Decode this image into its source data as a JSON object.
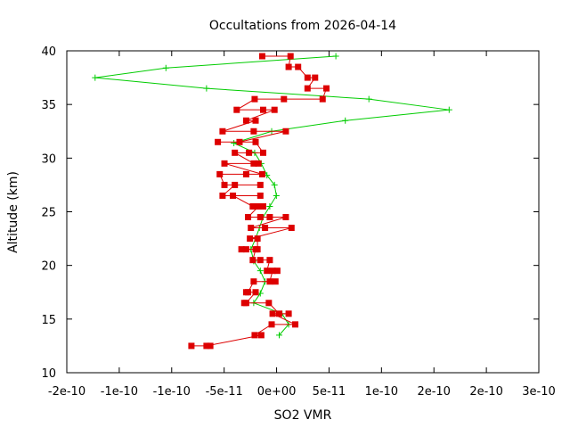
{
  "chart_data": {
    "type": "line",
    "title": "Occultations from 2026-04-14",
    "xlabel": "SO2 VMR",
    "ylabel": "Altitude (km)",
    "xlim": [
      -2e-10,
      3e-10
    ],
    "ylim": [
      10,
      40
    ],
    "x_ticks": [
      "-2e-10",
      "-1e-10",
      "-1e-10",
      "-5e-11",
      "0e+00",
      "5e-11",
      "1e-10",
      "2e-10",
      "2e-10",
      "3e-10"
    ],
    "y_ticks": [
      "10",
      "15",
      "20",
      "25",
      "30",
      "35",
      "40"
    ],
    "grid": false,
    "legend": "none",
    "series": [
      {
        "color": "#00cc00",
        "marker": "plus",
        "points": [
          [
            8.5e-11,
            39.5
          ],
          [
            -9.5e-11,
            38.4
          ],
          [
            -1.7e-10,
            37.5
          ],
          [
            -5.2e-11,
            36.5
          ],
          [
            1.2e-10,
            35.5
          ],
          [
            2.05e-10,
            34.5
          ],
          [
            9.5e-11,
            33.5
          ],
          [
            1.7e-11,
            32.5
          ],
          [
            -2.3e-11,
            31.4
          ],
          [
            -1e-12,
            30.5
          ],
          [
            6e-12,
            29.5
          ],
          [
            1.2e-11,
            28.4
          ],
          [
            2e-11,
            27.5
          ],
          [
            2.2e-11,
            26.5
          ],
          [
            1.5e-11,
            25.5
          ],
          [
            8e-12,
            24.5
          ],
          [
            4e-12,
            23.5
          ],
          [
            0,
            22.5
          ],
          [
            -5e-12,
            21.5
          ],
          [
            -2e-12,
            20.4
          ],
          [
            5e-12,
            19.5
          ],
          [
            1e-11,
            18.5
          ],
          [
            5e-12,
            17.4
          ],
          [
            -2e-12,
            16.5
          ],
          [
            2.8e-11,
            15.5
          ],
          [
            3.5e-11,
            14.5
          ],
          [
            2.5e-11,
            13.5
          ]
        ]
      },
      {
        "color": "#dd0000",
        "marker": "square",
        "points": [
          [
            7e-12,
            39.5
          ],
          [
            3.7e-11,
            39.5
          ],
          [
            3.5e-11,
            38.5
          ],
          [
            4.5e-11,
            38.5
          ],
          [
            5.5e-11,
            37.5
          ],
          [
            6.3e-11,
            37.5
          ],
          [
            5.5e-11,
            36.5
          ],
          [
            7.5e-11,
            36.5
          ],
          [
            7.1e-11,
            35.5
          ],
          [
            3e-11,
            35.5
          ],
          [
            -1e-12,
            35.5
          ],
          [
            -2e-11,
            34.5
          ],
          [
            8e-12,
            34.5
          ],
          [
            2e-11,
            34.5
          ],
          [
            -1e-11,
            33.5
          ],
          [
            0,
            33.5
          ],
          [
            -3.5e-11,
            32.5
          ],
          [
            -2e-12,
            32.5
          ],
          [
            3.2e-11,
            32.5
          ],
          [
            -1.7e-11,
            31.5
          ],
          [
            -4e-11,
            31.5
          ],
          [
            0,
            31.5
          ],
          [
            8e-12,
            30.5
          ],
          [
            -7e-12,
            30.5
          ],
          [
            -2.2e-11,
            30.5
          ],
          [
            -2e-12,
            29.5
          ],
          [
            3e-12,
            29.5
          ],
          [
            -3.3e-11,
            29.5
          ],
          [
            7e-12,
            28.5
          ],
          [
            -1e-11,
            28.5
          ],
          [
            -3.8e-11,
            28.5
          ],
          [
            -3.3e-11,
            27.5
          ],
          [
            5e-12,
            27.5
          ],
          [
            -2.2e-11,
            27.5
          ],
          [
            -3.5e-11,
            26.5
          ],
          [
            5e-12,
            26.5
          ],
          [
            -2.4e-11,
            26.5
          ],
          [
            -3e-12,
            25.5
          ],
          [
            8e-12,
            25.5
          ],
          [
            3e-12,
            25.5
          ],
          [
            -8e-12,
            24.5
          ],
          [
            5e-12,
            24.5
          ],
          [
            1.5e-11,
            24.5
          ],
          [
            3.2e-11,
            24.5
          ],
          [
            -5e-12,
            23.5
          ],
          [
            1e-11,
            23.5
          ],
          [
            3.8e-11,
            23.5
          ],
          [
            -6e-12,
            22.5
          ],
          [
            2e-12,
            22.5
          ],
          [
            2e-12,
            21.5
          ],
          [
            -1.5e-11,
            21.5
          ],
          [
            -1e-11,
            21.5
          ],
          [
            0,
            21.5
          ],
          [
            -3e-12,
            20.5
          ],
          [
            5e-12,
            20.5
          ],
          [
            1.5e-11,
            20.5
          ],
          [
            1.2e-11,
            19.5
          ],
          [
            2.3e-11,
            19.5
          ],
          [
            1.8e-11,
            19.5
          ],
          [
            1.5e-11,
            18.5
          ],
          [
            2.1e-11,
            18.5
          ],
          [
            -2e-12,
            18.5
          ],
          [
            -8e-12,
            17.5
          ],
          [
            -1e-11,
            17.5
          ],
          [
            0,
            17.5
          ],
          [
            -1e-11,
            16.5
          ],
          [
            -1.2e-11,
            16.5
          ],
          [
            1.4e-11,
            16.5
          ],
          [
            2.5e-11,
            15.5
          ],
          [
            3.5e-11,
            15.5
          ],
          [
            1.8e-11,
            15.5
          ],
          [
            4.2e-11,
            14.5
          ],
          [
            1.7e-11,
            14.5
          ],
          [
            -1e-12,
            13.5
          ],
          [
            6e-12,
            13.5
          ],
          [
            -5.2e-11,
            12.5
          ],
          [
            -4.8e-11,
            12.5
          ],
          [
            -6.8e-11,
            12.5
          ]
        ]
      }
    ]
  }
}
